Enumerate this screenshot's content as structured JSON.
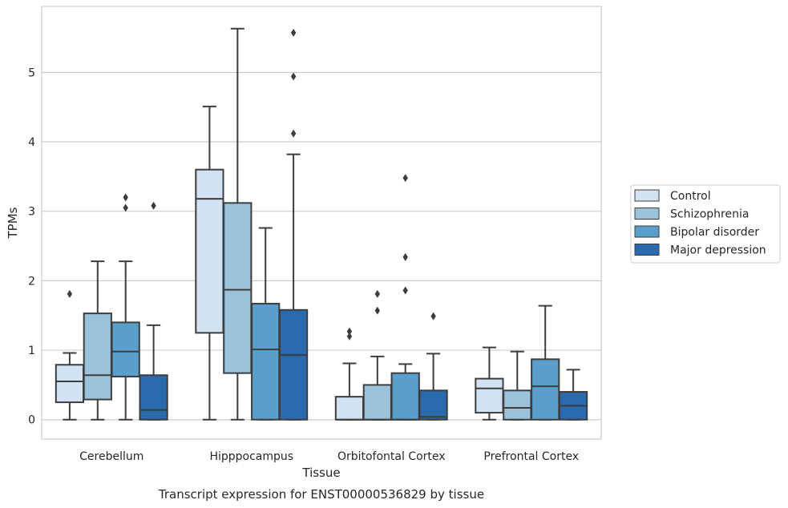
{
  "chart_data": {
    "type": "box",
    "xlabel": "Tissue",
    "ylabel": "TPMs",
    "caption": "Transcript expression for ENST00000536829 by tissue",
    "ylim": [
      -0.28,
      5.95
    ],
    "yticks": [
      0,
      1,
      2,
      3,
      4,
      5
    ],
    "grid": "horizontal",
    "legend_position": "right",
    "categories": [
      "Cerebellum",
      "Hipppocampus",
      "Orbitofontal Cortex",
      "Prefrontal Cortex"
    ],
    "series": [
      {
        "name": "Control",
        "color": "#d1e2f2",
        "boxes": [
          {
            "whislo": 0.0,
            "q1": 0.25,
            "med": 0.55,
            "q3": 0.79,
            "whishi": 0.96,
            "fliers": [
              1.81
            ]
          },
          {
            "whislo": 0.0,
            "q1": 1.25,
            "med": 3.18,
            "q3": 3.6,
            "whishi": 4.51,
            "fliers": []
          },
          {
            "whislo": 0.0,
            "q1": 0.0,
            "med": 0.0,
            "q3": 0.33,
            "whishi": 0.81,
            "fliers": [
              1.2,
              1.27
            ]
          },
          {
            "whislo": 0.0,
            "q1": 0.1,
            "med": 0.45,
            "q3": 0.59,
            "whishi": 1.04,
            "fliers": []
          }
        ]
      },
      {
        "name": "Schizophrenia",
        "color": "#9ac2da",
        "boxes": [
          {
            "whislo": 0.0,
            "q1": 0.29,
            "med": 0.64,
            "q3": 1.53,
            "whishi": 2.28,
            "fliers": []
          },
          {
            "whislo": 0.0,
            "q1": 0.67,
            "med": 1.87,
            "q3": 3.12,
            "whishi": 5.63,
            "fliers": []
          },
          {
            "whislo": 0.0,
            "q1": 0.0,
            "med": 0.0,
            "q3": 0.5,
            "whishi": 0.91,
            "fliers": [
              1.57,
              1.81
            ]
          },
          {
            "whislo": 0.0,
            "q1": 0.0,
            "med": 0.17,
            "q3": 0.42,
            "whishi": 0.98,
            "fliers": []
          }
        ]
      },
      {
        "name": "Bipolar disorder",
        "color": "#5a9ecb",
        "boxes": [
          {
            "whislo": 0.0,
            "q1": 0.62,
            "med": 0.98,
            "q3": 1.4,
            "whishi": 2.28,
            "fliers": [
              3.05,
              3.2
            ]
          },
          {
            "whislo": 0.0,
            "q1": 0.0,
            "med": 1.01,
            "q3": 1.67,
            "whishi": 2.76,
            "fliers": []
          },
          {
            "whislo": 0.0,
            "q1": 0.0,
            "med": 0.0,
            "q3": 0.67,
            "whishi": 0.8,
            "fliers": [
              1.86,
              2.34,
              3.48
            ]
          },
          {
            "whislo": 0.0,
            "q1": 0.0,
            "med": 0.48,
            "q3": 0.87,
            "whishi": 1.64,
            "fliers": []
          }
        ]
      },
      {
        "name": "Major depression",
        "color": "#2a6aad",
        "boxes": [
          {
            "whislo": 0.0,
            "q1": 0.0,
            "med": 0.14,
            "q3": 0.64,
            "whishi": 1.36,
            "fliers": [
              3.08
            ]
          },
          {
            "whislo": 0.0,
            "q1": 0.0,
            "med": 0.93,
            "q3": 1.58,
            "whishi": 3.82,
            "fliers": [
              4.12,
              4.94,
              5.57
            ]
          },
          {
            "whislo": 0.0,
            "q1": 0.0,
            "med": 0.04,
            "q3": 0.42,
            "whishi": 0.95,
            "fliers": [
              1.49
            ]
          },
          {
            "whislo": 0.0,
            "q1": 0.0,
            "med": 0.2,
            "q3": 0.4,
            "whishi": 0.72,
            "fliers": []
          }
        ]
      }
    ]
  }
}
